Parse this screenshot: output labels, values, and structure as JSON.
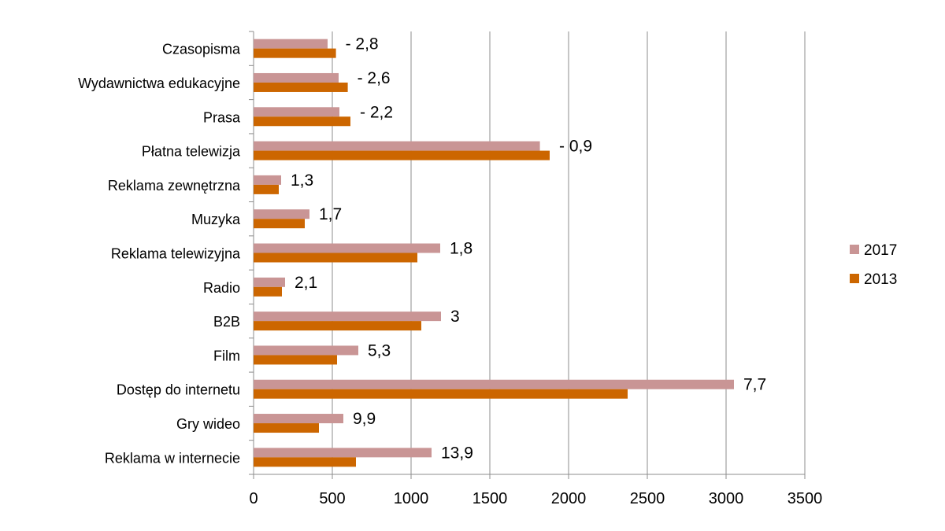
{
  "chart_data": {
    "type": "bar",
    "orientation": "horizontal",
    "title": "",
    "xlabel": "",
    "ylabel": "",
    "xlim": [
      0,
      3500
    ],
    "x_ticks": [
      "0",
      "500",
      "1000",
      "1500",
      "2000",
      "2500",
      "3000",
      "3500"
    ],
    "grid": true,
    "legend_position": "right",
    "categories": [
      "Czasopisma",
      "Wydawnictwa edukacyjne",
      "Prasa",
      "Płatna telewizja",
      "Reklama zewnętrzna",
      "Muzyka",
      "Reklama telewizyjna",
      "Radio",
      "B2B",
      "Film",
      "Dostęp do internetu",
      "Gry wideo",
      "Reklama w internecie"
    ],
    "series": [
      {
        "name": "2017",
        "color": "#c99595",
        "values": [
          470,
          540,
          545,
          1818,
          175,
          355,
          1185,
          200,
          1190,
          665,
          3050,
          570,
          1130
        ]
      },
      {
        "name": "2013",
        "color": "#cc6600",
        "values": [
          523,
          598,
          615,
          1880,
          160,
          325,
          1040,
          180,
          1065,
          530,
          2375,
          415,
          650
        ]
      }
    ],
    "data_labels": [
      "- 2,8",
      "- 2,6",
      "- 2,2",
      "- 0,9",
      "1,3",
      "1,7",
      "1,8",
      "2,1",
      "3",
      "5,3",
      "7,7",
      "9,9",
      "13,9"
    ]
  }
}
